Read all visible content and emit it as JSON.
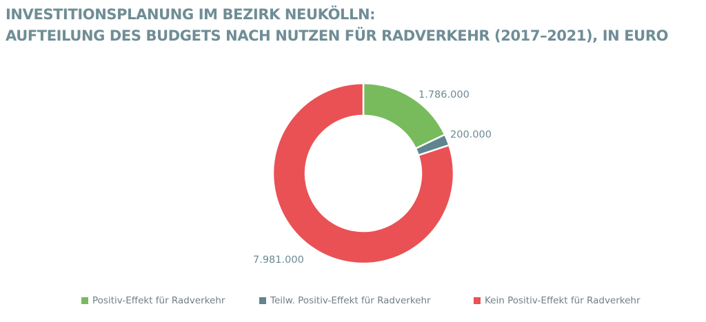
{
  "title": {
    "line1": "INVESTITIONSPLANUNG IM BEZIRK NEUKÖLLN:",
    "line2": "AUFTEILUNG DES BUDGETS NACH NUTZEN FÜR RADVERKEHR (2017–2021), IN EURO"
  },
  "colors": {
    "title": "#6f8d95",
    "label": "#6b8a93",
    "legend_text": "#707f84"
  },
  "chart_data": {
    "type": "pie",
    "variant": "donut",
    "title": "INVESTITIONSPLANUNG IM BEZIRK NEUKÖLLN: AUFTEILUNG DES BUDGETS NACH NUTZEN FÜR RADVERKEHR (2017–2021), IN EURO",
    "unit": "EURO",
    "legend_position": "bottom",
    "slices": [
      {
        "name": "Positiv-Effekt für Radverkehr",
        "value": 1786000,
        "label": "1.786.000",
        "color": "#77bb5d"
      },
      {
        "name": "Teilw. Positiv-Effekt für Radverkehr",
        "value": 200000,
        "label": "200.000",
        "color": "#5f858e"
      },
      {
        "name": "Kein Positiv-Effekt für Radverkehr",
        "value": 7981000,
        "label": "7.981.000",
        "color": "#e95155"
      }
    ]
  }
}
